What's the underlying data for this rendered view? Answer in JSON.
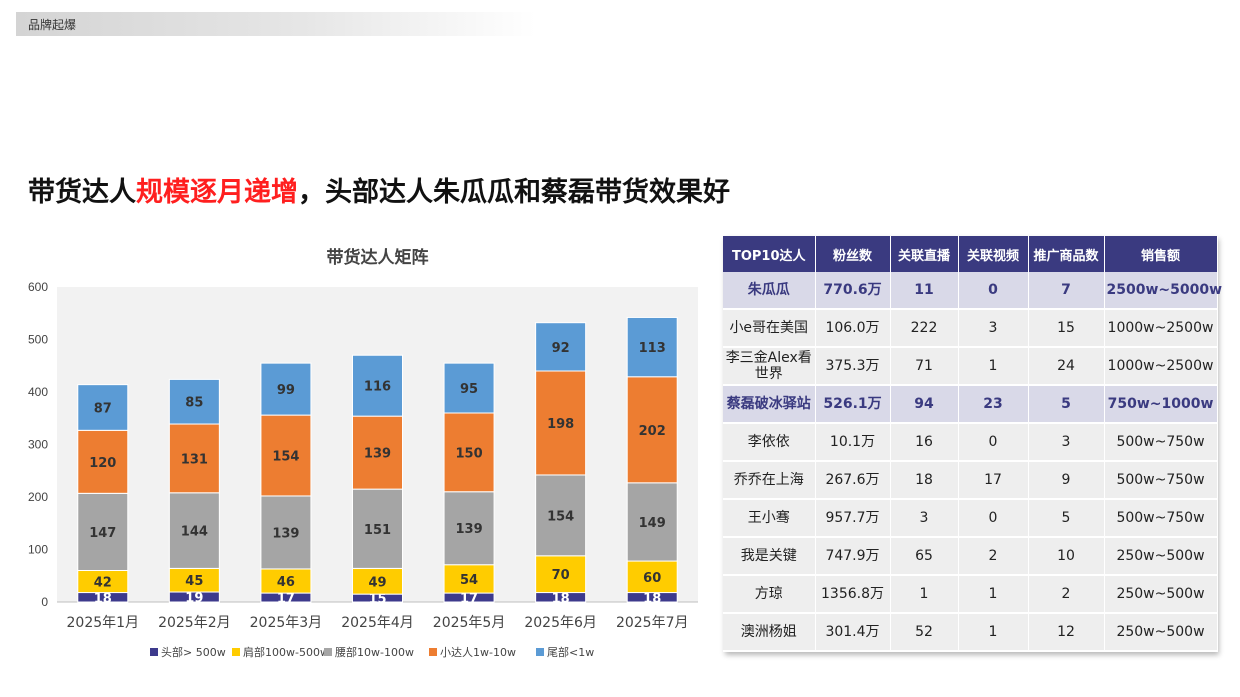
{
  "header": {
    "section_label": "品牌起爆"
  },
  "headline": {
    "part1": "带货达人",
    "highlight": "规模逐月递增",
    "part2": "，头部达人朱瓜瓜和蔡磊带货效果好"
  },
  "colors": {
    "head": "#3d3a8c",
    "shoulder": "#ffcc00",
    "waist": "#a5a5a5",
    "small": "#ed7d31",
    "tail": "#5b9bd5",
    "title_highlight": "#ff1f1f",
    "table_header": "#3a3a80"
  },
  "chart_data": {
    "type": "bar",
    "stacked": true,
    "title": "带货达人矩阵",
    "categories": [
      "2025年1月",
      "2025年2月",
      "2025年3月",
      "2025年4月",
      "2025年5月",
      "2025年6月",
      "2025年7月"
    ],
    "series": [
      {
        "name": "头部> 500w",
        "color": "#3d3a8c",
        "values": [
          18,
          19,
          17,
          15,
          17,
          18,
          18
        ]
      },
      {
        "name": "肩部100w-500w",
        "color": "#ffcc00",
        "values": [
          42,
          45,
          46,
          49,
          54,
          70,
          60
        ]
      },
      {
        "name": "腰部10w-100w",
        "color": "#a5a5a5",
        "values": [
          147,
          144,
          139,
          151,
          139,
          154,
          149
        ]
      },
      {
        "name": "小达人1w-10w",
        "color": "#ed7d31",
        "values": [
          120,
          131,
          154,
          139,
          150,
          198,
          202
        ]
      },
      {
        "name": "尾部<1w",
        "color": "#5b9bd5",
        "values": [
          87,
          85,
          99,
          116,
          95,
          92,
          113
        ]
      }
    ],
    "ylim": [
      0,
      600
    ],
    "yticks": [
      0,
      100,
      200,
      300,
      400,
      500,
      600
    ],
    "grid": false,
    "legend": "bottom"
  },
  "table": {
    "headers": [
      "TOP10达人",
      "粉丝数",
      "关联直播",
      "关联视频",
      "推广商品数",
      "销售额"
    ],
    "rows": [
      {
        "highlight": true,
        "cells": [
          "朱瓜瓜",
          "770.6万",
          "11",
          "0",
          "7",
          "2500w~5000w"
        ]
      },
      {
        "highlight": false,
        "cells": [
          "小e哥在美国",
          "106.0万",
          "222",
          "3",
          "15",
          "1000w~2500w"
        ]
      },
      {
        "highlight": false,
        "cells": [
          "李三金Alex看世界",
          "375.3万",
          "71",
          "1",
          "24",
          "1000w~2500w"
        ]
      },
      {
        "highlight": true,
        "cells": [
          "蔡磊破冰驿站",
          "526.1万",
          "94",
          "23",
          "5",
          "750w~1000w"
        ]
      },
      {
        "highlight": false,
        "cells": [
          "李依依",
          "10.1万",
          "16",
          "0",
          "3",
          "500w~750w"
        ]
      },
      {
        "highlight": false,
        "cells": [
          "乔乔在上海",
          "267.6万",
          "18",
          "17",
          "9",
          "500w~750w"
        ]
      },
      {
        "highlight": false,
        "cells": [
          "王小骞",
          "957.7万",
          "3",
          "0",
          "5",
          "500w~750w"
        ]
      },
      {
        "highlight": false,
        "cells": [
          "我是关键",
          "747.9万",
          "65",
          "2",
          "10",
          "250w~500w"
        ]
      },
      {
        "highlight": false,
        "cells": [
          "方琼",
          "1356.8万",
          "1",
          "1",
          "2",
          "250w~500w"
        ]
      },
      {
        "highlight": false,
        "cells": [
          "澳洲杨姐",
          "301.4万",
          "52",
          "1",
          "12",
          "250w~500w"
        ]
      }
    ]
  }
}
